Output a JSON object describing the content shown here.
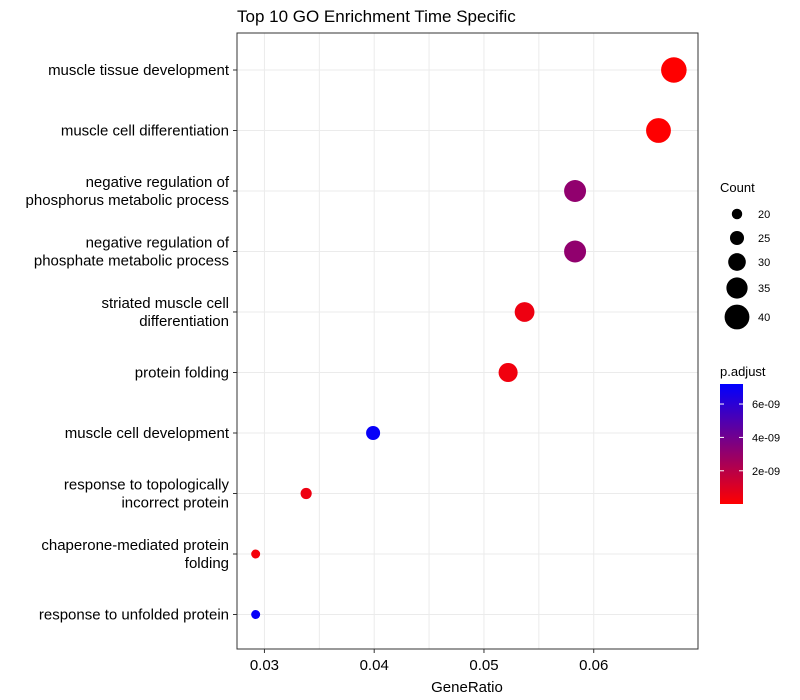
{
  "chart_data": {
    "type": "scatter",
    "title": "Top 10 GO Enrichment Time Specific",
    "xlabel": "GeneRatio",
    "ylabel": "",
    "xlim": [
      0.0275,
      0.0695
    ],
    "xticks": [
      0.03,
      0.04,
      0.05,
      0.06
    ],
    "xtick_labels": [
      "0.03",
      "0.04",
      "0.05",
      "0.06"
    ],
    "grid": true,
    "categories": [
      [
        "muscle tissue development"
      ],
      [
        "muscle cell differentiation"
      ],
      [
        "negative regulation of",
        "phosphorus metabolic process"
      ],
      [
        "negative regulation of",
        "phosphate metabolic process"
      ],
      [
        "striated muscle cell",
        "differentiation"
      ],
      [
        "protein folding"
      ],
      [
        "muscle cell development"
      ],
      [
        "response to topologically",
        "incorrect protein"
      ],
      [
        "chaperone-mediated protein",
        "folding"
      ],
      [
        "response to unfolded protein"
      ]
    ],
    "points": [
      {
        "x": 0.0673,
        "count": 41,
        "padj": 2e-11
      },
      {
        "x": 0.0659,
        "count": 40,
        "padj": 5e-11
      },
      {
        "x": 0.0583,
        "count": 36,
        "padj": 3.1e-09
      },
      {
        "x": 0.0583,
        "count": 36,
        "padj": 3.1e-09
      },
      {
        "x": 0.0537,
        "count": 33,
        "padj": 5e-10
      },
      {
        "x": 0.0522,
        "count": 32,
        "padj": 4e-10
      },
      {
        "x": 0.0399,
        "count": 25,
        "padj": 7e-09
      },
      {
        "x": 0.0338,
        "count": 21,
        "padj": 5e-10
      },
      {
        "x": 0.0292,
        "count": 18,
        "padj": 3e-10
      },
      {
        "x": 0.0292,
        "count": 18,
        "padj": 7e-09
      }
    ],
    "size_legend": {
      "title": "Count",
      "values": [
        20,
        25,
        30,
        35,
        40
      ],
      "labels": [
        "20",
        "25",
        "30",
        "35",
        "40"
      ]
    },
    "color_legend": {
      "title": "p.adjust",
      "low_color": "#FF0000",
      "high_color": "#0000FF",
      "range": [
        1e-11,
        7.2e-09
      ],
      "ticks": [
        2e-09,
        4e-09,
        6e-09
      ],
      "labels": [
        "2e-09",
        "4e-09",
        "6e-09"
      ]
    },
    "legend_position": "right"
  }
}
